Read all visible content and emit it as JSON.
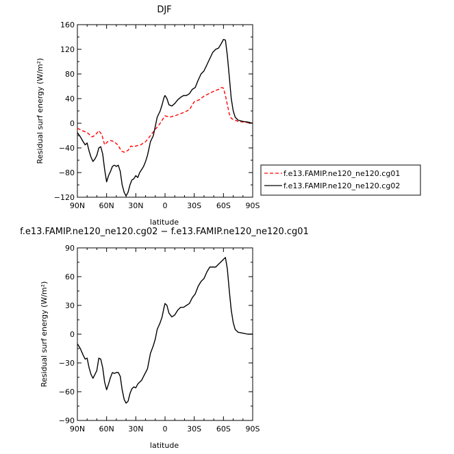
{
  "chart_data": [
    {
      "type": "line",
      "title": "DJF",
      "xlabel": "latitude",
      "ylabel": "Residual surf energy (W/m²)",
      "xlim": [
        90,
        -90
      ],
      "ylim": [
        -120,
        160
      ],
      "xtick_values": [
        90,
        60,
        30,
        0,
        -30,
        -60,
        -90
      ],
      "xtick_labels": [
        "90N",
        "60N",
        "30N",
        "0",
        "30S",
        "60S",
        "90S"
      ],
      "ytick_values": [
        -120,
        -80,
        -40,
        0,
        40,
        80,
        120,
        160
      ],
      "ytick_labels": [
        "−120",
        "−80",
        "−40",
        "0",
        "40",
        "80",
        "120",
        "160"
      ],
      "legend_position": "right",
      "series": [
        {
          "name": "f.e13.FAMIP.ne120_ne120.cg01",
          "color": "#ff0000",
          "dash": "dashed",
          "x": [
            90,
            85,
            80,
            75,
            72,
            68,
            65,
            62,
            59,
            56,
            52,
            48,
            45,
            42,
            38,
            35,
            32,
            28,
            25,
            20,
            15,
            10,
            5,
            3,
            0,
            -5,
            -10,
            -15,
            -20,
            -25,
            -30,
            -35,
            -40,
            -45,
            -50,
            -55,
            -58,
            -60,
            -62,
            -64,
            -66,
            -68,
            -70,
            -72,
            -75,
            -80,
            -85,
            -90
          ],
          "y": [
            -8,
            -12,
            -15,
            -22,
            -20,
            -12,
            -18,
            -35,
            -30,
            -28,
            -30,
            -36,
            -45,
            -47,
            -44,
            -37,
            -38,
            -36,
            -35,
            -30,
            -20,
            -10,
            0,
            5,
            12,
            10,
            12,
            15,
            18,
            22,
            35,
            38,
            44,
            48,
            52,
            55,
            58,
            57,
            45,
            30,
            15,
            8,
            6,
            5,
            3,
            2,
            1,
            0
          ]
        },
        {
          "name": "f.e13.FAMIP.ne120_ne120.cg02",
          "color": "#000000",
          "dash": "solid",
          "x": [
            90,
            87,
            84,
            82,
            80,
            78,
            76,
            74,
            72,
            70,
            68,
            66,
            64,
            62,
            60,
            58,
            56,
            54,
            52,
            50,
            48,
            46,
            44,
            42,
            40,
            38,
            36,
            34,
            32,
            30,
            28,
            26,
            24,
            22,
            20,
            18,
            15,
            12,
            10,
            8,
            5,
            3,
            1,
            0,
            -2,
            -4,
            -7,
            -10,
            -13,
            -16,
            -19,
            -22,
            -25,
            -28,
            -31,
            -34,
            -37,
            -40,
            -43,
            -46,
            -49,
            -52,
            -55,
            -58,
            -60,
            -62,
            -64,
            -66,
            -68,
            -70,
            -72,
            -75,
            -80,
            -85,
            -90
          ],
          "y": [
            -15,
            -22,
            -30,
            -35,
            -32,
            -45,
            -55,
            -62,
            -58,
            -52,
            -40,
            -38,
            -50,
            -75,
            -95,
            -85,
            -78,
            -70,
            -68,
            -70,
            -68,
            -78,
            -100,
            -112,
            -118,
            -112,
            -100,
            -92,
            -90,
            -85,
            -88,
            -80,
            -75,
            -70,
            -62,
            -52,
            -30,
            -20,
            -5,
            10,
            20,
            30,
            42,
            45,
            40,
            30,
            28,
            32,
            38,
            42,
            45,
            45,
            48,
            55,
            58,
            70,
            80,
            85,
            95,
            105,
            115,
            120,
            122,
            130,
            136,
            135,
            110,
            75,
            40,
            20,
            10,
            5,
            3,
            2,
            0
          ]
        }
      ]
    },
    {
      "type": "line",
      "title": "f.e13.FAMIP.ne120_ne120.cg02 − f.e13.FAMIP.ne120_ne120.cg01",
      "xlabel": "latitude",
      "ylabel": "Residual surf energy (W/m²)",
      "xlim": [
        90,
        -90
      ],
      "ylim": [
        -90,
        90
      ],
      "xtick_values": [
        90,
        60,
        30,
        0,
        -30,
        -60,
        -90
      ],
      "xtick_labels": [
        "90N",
        "60N",
        "30N",
        "0",
        "30S",
        "60S",
        "90S"
      ],
      "ytick_values": [
        -90,
        -60,
        -30,
        0,
        30,
        60,
        90
      ],
      "ytick_labels": [
        "−90",
        "−60",
        "−30",
        "0",
        "30",
        "60",
        "90"
      ],
      "series": [
        {
          "color": "#000000",
          "dash": "solid",
          "x": [
            90,
            87,
            84,
            82,
            80,
            78,
            76,
            74,
            72,
            70,
            68,
            66,
            64,
            62,
            60,
            58,
            56,
            54,
            52,
            50,
            48,
            46,
            44,
            42,
            40,
            38,
            36,
            34,
            32,
            30,
            28,
            26,
            24,
            22,
            20,
            18,
            15,
            12,
            10,
            8,
            5,
            3,
            1,
            0,
            -2,
            -4,
            -7,
            -10,
            -13,
            -16,
            -19,
            -22,
            -25,
            -28,
            -31,
            -34,
            -37,
            -40,
            -43,
            -46,
            -49,
            -52,
            -55,
            -58,
            -60,
            -62,
            -64,
            -66,
            -68,
            -70,
            -72,
            -75,
            -80,
            -85,
            -90
          ],
          "y": [
            -10,
            -15,
            -22,
            -26,
            -25,
            -35,
            -42,
            -46,
            -42,
            -38,
            -25,
            -26,
            -35,
            -50,
            -58,
            -52,
            -45,
            -40,
            -41,
            -40,
            -40,
            -44,
            -58,
            -68,
            -72,
            -70,
            -62,
            -57,
            -55,
            -56,
            -52,
            -50,
            -48,
            -44,
            -40,
            -36,
            -20,
            -12,
            -5,
            5,
            12,
            18,
            28,
            32,
            30,
            22,
            18,
            20,
            25,
            28,
            28,
            30,
            32,
            38,
            42,
            50,
            55,
            58,
            65,
            70,
            70,
            70,
            73,
            76,
            78,
            80,
            68,
            45,
            25,
            12,
            5,
            2,
            1,
            0,
            0
          ]
        }
      ]
    }
  ]
}
